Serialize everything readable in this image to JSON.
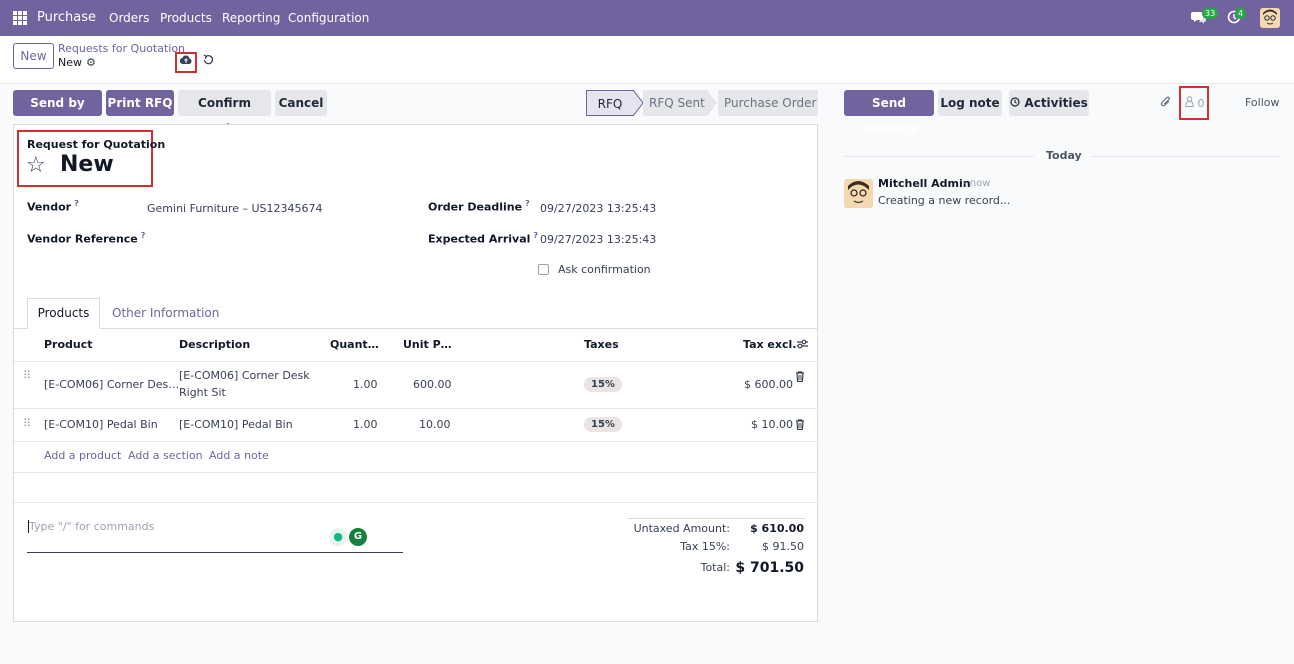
{
  "topnav": {
    "app_name": "Purchase",
    "menu": [
      "Orders",
      "Products",
      "Reporting",
      "Configuration"
    ],
    "messages_count": "33",
    "activities_count": "4"
  },
  "control": {
    "new_button": "New",
    "breadcrumb_parent": "Requests for Quotation",
    "breadcrumb_current": "New"
  },
  "actions": {
    "send_email": "Send by Email",
    "print_rfq": "Print RFQ",
    "confirm_order": "Confirm Order",
    "cancel": "Cancel"
  },
  "status_steps": [
    "RFQ",
    "RFQ Sent",
    "Purchase Order"
  ],
  "status_active": "RFQ",
  "form": {
    "subtitle": "Request for Quotation",
    "title": "New",
    "vendor_label": "Vendor",
    "vendor_value": "Gemini Furniture – US12345674",
    "vendor_ref_label": "Vendor Reference",
    "vendor_ref_value": "",
    "order_deadline_label": "Order Deadline",
    "order_deadline_value": "09/27/2023 13:25:43",
    "expected_arrival_label": "Expected Arrival",
    "expected_arrival_value": "09/27/2023 13:25:43",
    "ask_confirmation_label": "Ask confirmation",
    "help_mark": "?"
  },
  "tabs": [
    "Products",
    "Other Information"
  ],
  "table": {
    "headers": [
      "Product",
      "Description",
      "Quant…",
      "Unit P…",
      "Taxes",
      "Tax excl."
    ],
    "rows": [
      {
        "product": "[E-COM06] Corner Des…",
        "description_line1": "[E-COM06] Corner Desk",
        "description_line2": "Right Sit",
        "quantity": "1.00",
        "unit_price": "600.00",
        "tax": "15%",
        "subtotal": "$ 600.00"
      },
      {
        "product": "[E-COM10] Pedal Bin",
        "description_line1": "[E-COM10] Pedal Bin",
        "description_line2": "",
        "quantity": "1.00",
        "unit_price": "10.00",
        "tax": "15%",
        "subtotal": "$ 10.00"
      }
    ],
    "add_product": "Add a product",
    "add_section": "Add a section",
    "add_note": "Add a note"
  },
  "note": {
    "placeholder": "Type \"/\" for commands"
  },
  "totals": {
    "untaxed_label": "Untaxed Amount:",
    "untaxed_value": "$ 610.00",
    "tax_label": "Tax 15%:",
    "tax_value": "$ 91.50",
    "total_label": "Total:",
    "total_value": "$ 701.50"
  },
  "chatter": {
    "send_message": "Send message",
    "log_note": "Log note",
    "activities": "Activities",
    "followers_count": "0",
    "follow": "Follow",
    "date_separator": "Today",
    "message_author": "Mitchell Admin",
    "message_date": "- now",
    "message_body": "Creating a new record..."
  },
  "colors": {
    "brand": "#71639e",
    "highlight_box": "#d32f2f",
    "success_badge": "#28a745"
  }
}
